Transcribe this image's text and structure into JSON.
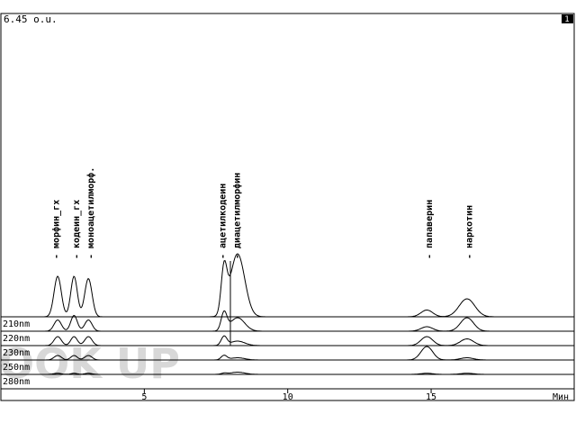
{
  "chart_data": {
    "type": "line",
    "scale_label": "6.45 o.u.",
    "corner_badge": "1",
    "xlabel": "Мин",
    "xlim": [
      0,
      15
    ],
    "x_ticks": [
      5,
      10,
      15
    ],
    "tick_labels": [
      "5",
      "10",
      "15"
    ],
    "peak_labels": [
      {
        "label": "морфин_гх",
        "t": 1.9
      },
      {
        "label": "кодеин_гх",
        "t": 2.6
      },
      {
        "label": "моноацетилморф.",
        "t": 3.1
      },
      {
        "label": "ацетилкодеин",
        "t": 7.7
      },
      {
        "label": "диацетилморфин",
        "t": 8.2
      },
      {
        "label": "папаверин",
        "t": 14.9
      },
      {
        "label": "наркотин",
        "t": 16.3
      }
    ],
    "series": [
      {
        "name": "210nm",
        "peaks": [
          {
            "t": 1.98,
            "h": 0.18,
            "w": 0.28
          },
          {
            "t": 2.55,
            "h": 0.18,
            "w": 0.25
          },
          {
            "t": 3.05,
            "h": 0.17,
            "w": 0.28
          },
          {
            "t": 7.78,
            "h": 0.2,
            "w": 0.22
          },
          {
            "t": 8.25,
            "h": 0.28,
            "w": 0.55
          },
          {
            "t": 14.85,
            "h": 0.03,
            "w": 0.45
          },
          {
            "t": 16.25,
            "h": 0.08,
            "w": 0.6
          }
        ]
      },
      {
        "name": "220nm",
        "peaks": [
          {
            "t": 1.98,
            "h": 0.05,
            "w": 0.28
          },
          {
            "t": 2.55,
            "h": 0.07,
            "w": 0.25
          },
          {
            "t": 3.05,
            "h": 0.05,
            "w": 0.28
          },
          {
            "t": 7.78,
            "h": 0.08,
            "w": 0.22
          },
          {
            "t": 8.25,
            "h": 0.06,
            "w": 0.55
          },
          {
            "t": 14.85,
            "h": 0.02,
            "w": 0.45
          },
          {
            "t": 16.25,
            "h": 0.06,
            "w": 0.5
          }
        ]
      },
      {
        "name": "230nm",
        "peaks": [
          {
            "t": 1.98,
            "h": 0.04,
            "w": 0.28
          },
          {
            "t": 2.55,
            "h": 0.04,
            "w": 0.25
          },
          {
            "t": 3.05,
            "h": 0.04,
            "w": 0.28
          },
          {
            "t": 7.78,
            "h": 0.04,
            "w": 0.22
          },
          {
            "t": 8.25,
            "h": 0.02,
            "w": 0.55
          },
          {
            "t": 14.85,
            "h": 0.04,
            "w": 0.45
          },
          {
            "t": 16.25,
            "h": 0.03,
            "w": 0.5
          }
        ]
      },
      {
        "name": "250nm",
        "peaks": [
          {
            "t": 1.98,
            "h": 0.02,
            "w": 0.28
          },
          {
            "t": 2.55,
            "h": 0.02,
            "w": 0.25
          },
          {
            "t": 3.05,
            "h": 0.02,
            "w": 0.28
          },
          {
            "t": 7.78,
            "h": 0.02,
            "w": 0.22
          },
          {
            "t": 8.25,
            "h": 0.01,
            "w": 0.55
          },
          {
            "t": 14.85,
            "h": 0.06,
            "w": 0.45
          },
          {
            "t": 16.25,
            "h": 0.01,
            "w": 0.5
          }
        ]
      },
      {
        "name": "280nm",
        "peaks": [
          {
            "t": 1.98,
            "h": 0.005,
            "w": 0.28
          },
          {
            "t": 2.55,
            "h": 0.005,
            "w": 0.25
          },
          {
            "t": 3.05,
            "h": 0.005,
            "w": 0.28
          },
          {
            "t": 7.78,
            "h": 0.005,
            "w": 0.22
          },
          {
            "t": 8.25,
            "h": 0.01,
            "w": 0.55
          },
          {
            "t": 14.85,
            "h": 0.005,
            "w": 0.45
          },
          {
            "t": 16.25,
            "h": 0.005,
            "w": 0.5
          }
        ]
      }
    ]
  },
  "watermark": "BOOK UP"
}
